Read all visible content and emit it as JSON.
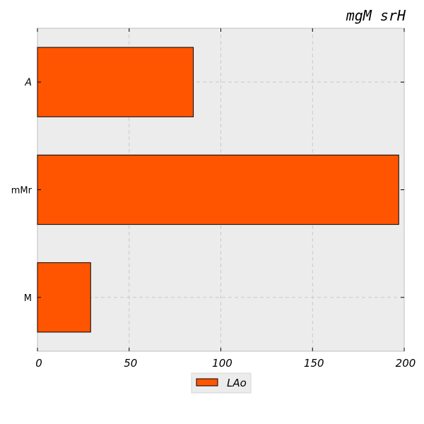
{
  "chart_data": {
    "type": "bar",
    "orientation": "horizontal",
    "title": "mgM srH",
    "xlabel": "",
    "ylabel": "",
    "categories": [
      "A",
      "mMr",
      "M"
    ],
    "series": [
      {
        "name": "LAo",
        "values": [
          85,
          197,
          29
        ],
        "color": "#ff5500"
      }
    ],
    "xlim": [
      0,
      200
    ],
    "xticks": [
      "0",
      "50",
      "100",
      "150",
      "200"
    ],
    "grid": true,
    "legend_position": "bottom-center",
    "colors": {
      "plot_background": "#ececec",
      "bar_fill": "#ff5500",
      "bar_edge": "#000000",
      "grid": "#c8c8c8"
    }
  }
}
